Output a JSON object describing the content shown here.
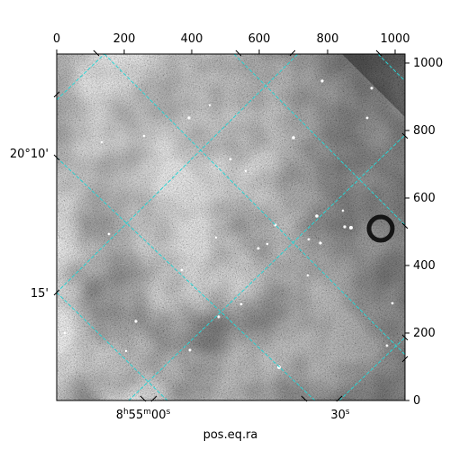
{
  "image": {
    "description_type": "astronomical grayscale image with WCS grid",
    "colors": {
      "grid": "#29d3d3",
      "frame": "#000000",
      "background": "#ffffff"
    }
  },
  "axes": {
    "xlabel": "pos.eq.ra",
    "top_ticks": [
      "0",
      "200",
      "400",
      "600",
      "800",
      "1000"
    ],
    "right_ticks": [
      "0",
      "200",
      "400",
      "600",
      "800",
      "1000"
    ],
    "bottom_ticks": [
      "8h55m00s",
      "30s"
    ],
    "left_ticks": [
      "20°10'",
      "15'"
    ]
  },
  "labels": {
    "ra_major": "8",
    "ra_h": "h",
    "ra_min": "55",
    "ra_m": "m",
    "ra_sec": "00",
    "ra_s": "s",
    "ra_minor_sec": "30",
    "ra_minor_s": "s"
  }
}
